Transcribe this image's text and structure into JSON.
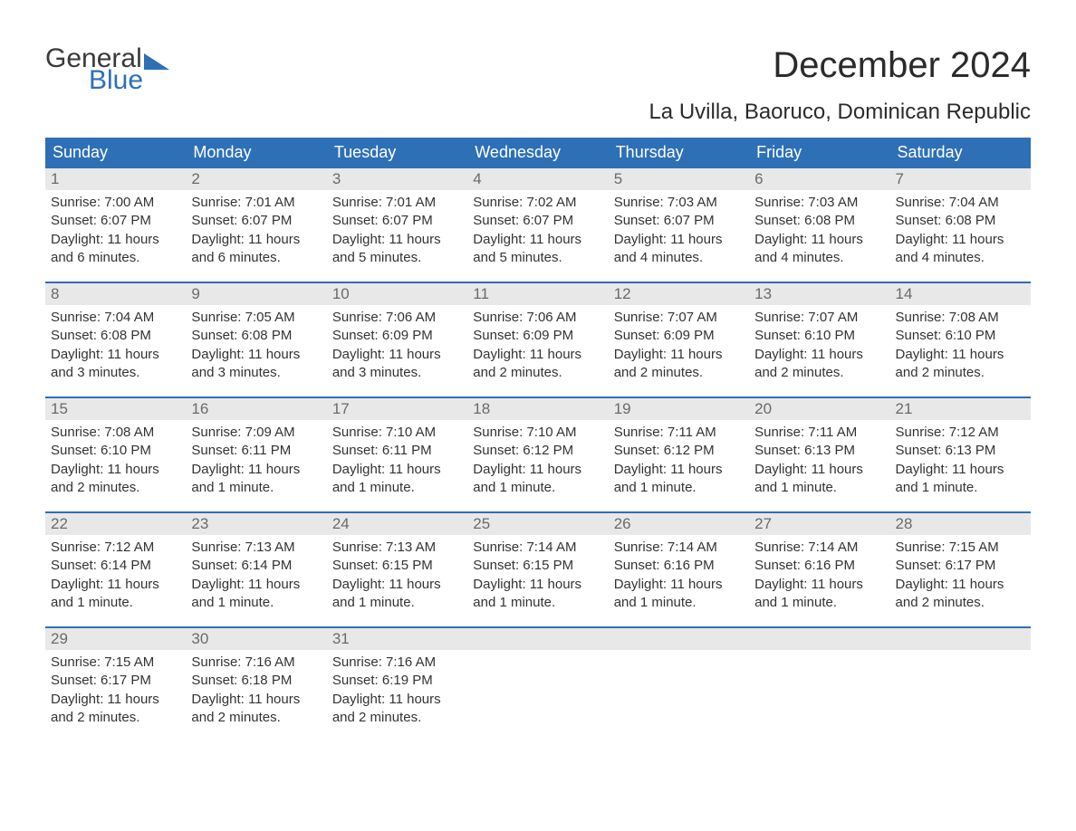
{
  "brand": {
    "word1": "General",
    "word2": "Blue"
  },
  "title": "December 2024",
  "location": "La Uvilla, Baoruco, Dominican Republic",
  "colors": {
    "header_bg": "#2d70b6",
    "header_text": "#ffffff",
    "daynum_bg": "#e8e8e8",
    "daynum_text": "#6a6a6a",
    "body_text": "#333333",
    "rule": "#2d70b6",
    "page_bg": "#ffffff"
  },
  "typography": {
    "title_fontsize": 40,
    "location_fontsize": 24,
    "weekday_fontsize": 18,
    "daynum_fontsize": 17,
    "body_fontsize": 15,
    "logo_fontsize": 30
  },
  "weekdays": [
    "Sunday",
    "Monday",
    "Tuesday",
    "Wednesday",
    "Thursday",
    "Friday",
    "Saturday"
  ],
  "labels": {
    "sunrise": "Sunrise:",
    "sunset": "Sunset:",
    "daylight": "Daylight:"
  },
  "weeks": [
    [
      {
        "n": "1",
        "sr": "7:00 AM",
        "ss": "6:07 PM",
        "dl": "11 hours and 6 minutes."
      },
      {
        "n": "2",
        "sr": "7:01 AM",
        "ss": "6:07 PM",
        "dl": "11 hours and 6 minutes."
      },
      {
        "n": "3",
        "sr": "7:01 AM",
        "ss": "6:07 PM",
        "dl": "11 hours and 5 minutes."
      },
      {
        "n": "4",
        "sr": "7:02 AM",
        "ss": "6:07 PM",
        "dl": "11 hours and 5 minutes."
      },
      {
        "n": "5",
        "sr": "7:03 AM",
        "ss": "6:07 PM",
        "dl": "11 hours and 4 minutes."
      },
      {
        "n": "6",
        "sr": "7:03 AM",
        "ss": "6:08 PM",
        "dl": "11 hours and 4 minutes."
      },
      {
        "n": "7",
        "sr": "7:04 AM",
        "ss": "6:08 PM",
        "dl": "11 hours and 4 minutes."
      }
    ],
    [
      {
        "n": "8",
        "sr": "7:04 AM",
        "ss": "6:08 PM",
        "dl": "11 hours and 3 minutes."
      },
      {
        "n": "9",
        "sr": "7:05 AM",
        "ss": "6:08 PM",
        "dl": "11 hours and 3 minutes."
      },
      {
        "n": "10",
        "sr": "7:06 AM",
        "ss": "6:09 PM",
        "dl": "11 hours and 3 minutes."
      },
      {
        "n": "11",
        "sr": "7:06 AM",
        "ss": "6:09 PM",
        "dl": "11 hours and 2 minutes."
      },
      {
        "n": "12",
        "sr": "7:07 AM",
        "ss": "6:09 PM",
        "dl": "11 hours and 2 minutes."
      },
      {
        "n": "13",
        "sr": "7:07 AM",
        "ss": "6:10 PM",
        "dl": "11 hours and 2 minutes."
      },
      {
        "n": "14",
        "sr": "7:08 AM",
        "ss": "6:10 PM",
        "dl": "11 hours and 2 minutes."
      }
    ],
    [
      {
        "n": "15",
        "sr": "7:08 AM",
        "ss": "6:10 PM",
        "dl": "11 hours and 2 minutes."
      },
      {
        "n": "16",
        "sr": "7:09 AM",
        "ss": "6:11 PM",
        "dl": "11 hours and 1 minute."
      },
      {
        "n": "17",
        "sr": "7:10 AM",
        "ss": "6:11 PM",
        "dl": "11 hours and 1 minute."
      },
      {
        "n": "18",
        "sr": "7:10 AM",
        "ss": "6:12 PM",
        "dl": "11 hours and 1 minute."
      },
      {
        "n": "19",
        "sr": "7:11 AM",
        "ss": "6:12 PM",
        "dl": "11 hours and 1 minute."
      },
      {
        "n": "20",
        "sr": "7:11 AM",
        "ss": "6:13 PM",
        "dl": "11 hours and 1 minute."
      },
      {
        "n": "21",
        "sr": "7:12 AM",
        "ss": "6:13 PM",
        "dl": "11 hours and 1 minute."
      }
    ],
    [
      {
        "n": "22",
        "sr": "7:12 AM",
        "ss": "6:14 PM",
        "dl": "11 hours and 1 minute."
      },
      {
        "n": "23",
        "sr": "7:13 AM",
        "ss": "6:14 PM",
        "dl": "11 hours and 1 minute."
      },
      {
        "n": "24",
        "sr": "7:13 AM",
        "ss": "6:15 PM",
        "dl": "11 hours and 1 minute."
      },
      {
        "n": "25",
        "sr": "7:14 AM",
        "ss": "6:15 PM",
        "dl": "11 hours and 1 minute."
      },
      {
        "n": "26",
        "sr": "7:14 AM",
        "ss": "6:16 PM",
        "dl": "11 hours and 1 minute."
      },
      {
        "n": "27",
        "sr": "7:14 AM",
        "ss": "6:16 PM",
        "dl": "11 hours and 1 minute."
      },
      {
        "n": "28",
        "sr": "7:15 AM",
        "ss": "6:17 PM",
        "dl": "11 hours and 2 minutes."
      }
    ],
    [
      {
        "n": "29",
        "sr": "7:15 AM",
        "ss": "6:17 PM",
        "dl": "11 hours and 2 minutes."
      },
      {
        "n": "30",
        "sr": "7:16 AM",
        "ss": "6:18 PM",
        "dl": "11 hours and 2 minutes."
      },
      {
        "n": "31",
        "sr": "7:16 AM",
        "ss": "6:19 PM",
        "dl": "11 hours and 2 minutes."
      },
      {
        "empty": true
      },
      {
        "empty": true
      },
      {
        "empty": true
      },
      {
        "empty": true
      }
    ]
  ]
}
